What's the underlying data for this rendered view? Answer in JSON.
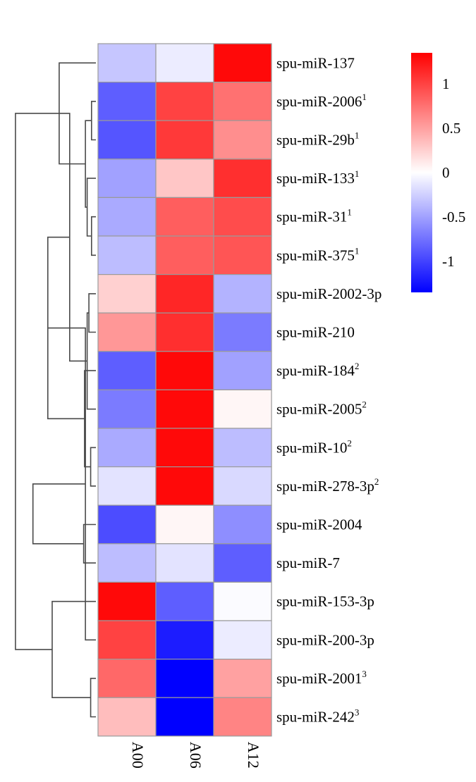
{
  "chart_data": {
    "type": "heatmap",
    "title": "",
    "columns": [
      "A00",
      "A06",
      "A12"
    ],
    "rows": [
      {
        "label": "spu-miR-137",
        "sup": "",
        "values": [
          -0.3,
          -0.1,
          1.3
        ]
      },
      {
        "label": "spu-miR-2006",
        "sup": "1",
        "values": [
          -0.85,
          1.0,
          0.75
        ]
      },
      {
        "label": "spu-miR-29b",
        "sup": "1",
        "values": [
          -0.9,
          1.05,
          0.6
        ]
      },
      {
        "label": "spu-miR-133",
        "sup": "1",
        "values": [
          -0.5,
          0.3,
          1.1
        ]
      },
      {
        "label": "spu-miR-31",
        "sup": "1",
        "values": [
          -0.45,
          0.85,
          0.95
        ]
      },
      {
        "label": "spu-miR-375",
        "sup": "1",
        "values": [
          -0.35,
          0.85,
          0.9
        ]
      },
      {
        "label": "spu-miR-2002-3p",
        "sup": "",
        "values": [
          0.25,
          1.15,
          -0.4
        ]
      },
      {
        "label": "spu-miR-210",
        "sup": "",
        "values": [
          0.55,
          1.1,
          -0.7
        ]
      },
      {
        "label": "spu-miR-184",
        "sup": "2",
        "values": [
          -0.85,
          1.3,
          -0.5
        ]
      },
      {
        "label": "spu-miR-2005",
        "sup": "2",
        "values": [
          -0.7,
          1.3,
          0.05
        ]
      },
      {
        "label": "spu-miR-10",
        "sup": "2",
        "values": [
          -0.45,
          1.3,
          -0.35
        ]
      },
      {
        "label": "spu-miR-278-3p",
        "sup": "2",
        "values": [
          -0.15,
          1.3,
          -0.2
        ]
      },
      {
        "label": "spu-miR-2004",
        "sup": "",
        "values": [
          -0.95,
          0.05,
          -0.6
        ]
      },
      {
        "label": "spu-miR-7",
        "sup": "",
        "values": [
          -0.35,
          -0.15,
          -0.85
        ]
      },
      {
        "label": "spu-miR-153-3p",
        "sup": "",
        "values": [
          1.3,
          -0.85,
          -0.02
        ]
      },
      {
        "label": "spu-miR-200-3p",
        "sup": "",
        "values": [
          1.0,
          -1.2,
          -0.1
        ]
      },
      {
        "label": "spu-miR-2001",
        "sup": "3",
        "values": [
          0.8,
          -1.35,
          0.5
        ]
      },
      {
        "label": "spu-miR-242",
        "sup": "3",
        "values": [
          0.35,
          -1.35,
          0.65
        ]
      }
    ],
    "color_scale": {
      "min": -1.35,
      "max": 1.35,
      "low": "#0000ff",
      "mid": "#ffffff",
      "high": "#ff0000",
      "ticks": [
        1,
        0.5,
        0,
        -0.5,
        -1
      ],
      "tick_labels": [
        "1",
        "0.5",
        "0",
        "-0.5",
        "-1"
      ]
    },
    "dendrogram": {
      "leaf_order": [
        0,
        1,
        2,
        3,
        4,
        5,
        6,
        7,
        8,
        9,
        10,
        11,
        12,
        13,
        14,
        15,
        16,
        17
      ],
      "merges": [
        {
          "a": 1,
          "b": 2,
          "h": 0.05
        },
        {
          "a": 4,
          "b": 5,
          "h": 0.05
        },
        {
          "a": 3,
          "b": 19,
          "h": 0.1
        },
        {
          "a": 18,
          "b": 20,
          "h": 0.12
        },
        {
          "a": 0,
          "b": 21,
          "h": 0.42
        },
        {
          "a": 6,
          "b": 7,
          "h": 0.08
        },
        {
          "a": 10,
          "b": 11,
          "h": 0.06
        },
        {
          "a": 9,
          "b": 23,
          "h": 0.1
        },
        {
          "a": 8,
          "b": 24,
          "h": 0.13
        },
        {
          "a": 22,
          "b": 25,
          "h": 0.3
        },
        {
          "a": 12,
          "b": 13,
          "h": 0.14
        },
        {
          "a": 26,
          "b": 27,
          "h": 0.55
        },
        {
          "a": 16,
          "b": 17,
          "h": 0.06
        },
        {
          "a": 15,
          "b": 29,
          "h": 0.12
        },
        {
          "a": 14,
          "b": 30,
          "h": 0.5
        },
        {
          "a": 28,
          "b": 31,
          "h": 0.72
        },
        {
          "a": 22,
          "b": 32,
          "h": 0.92
        }
      ]
    }
  }
}
